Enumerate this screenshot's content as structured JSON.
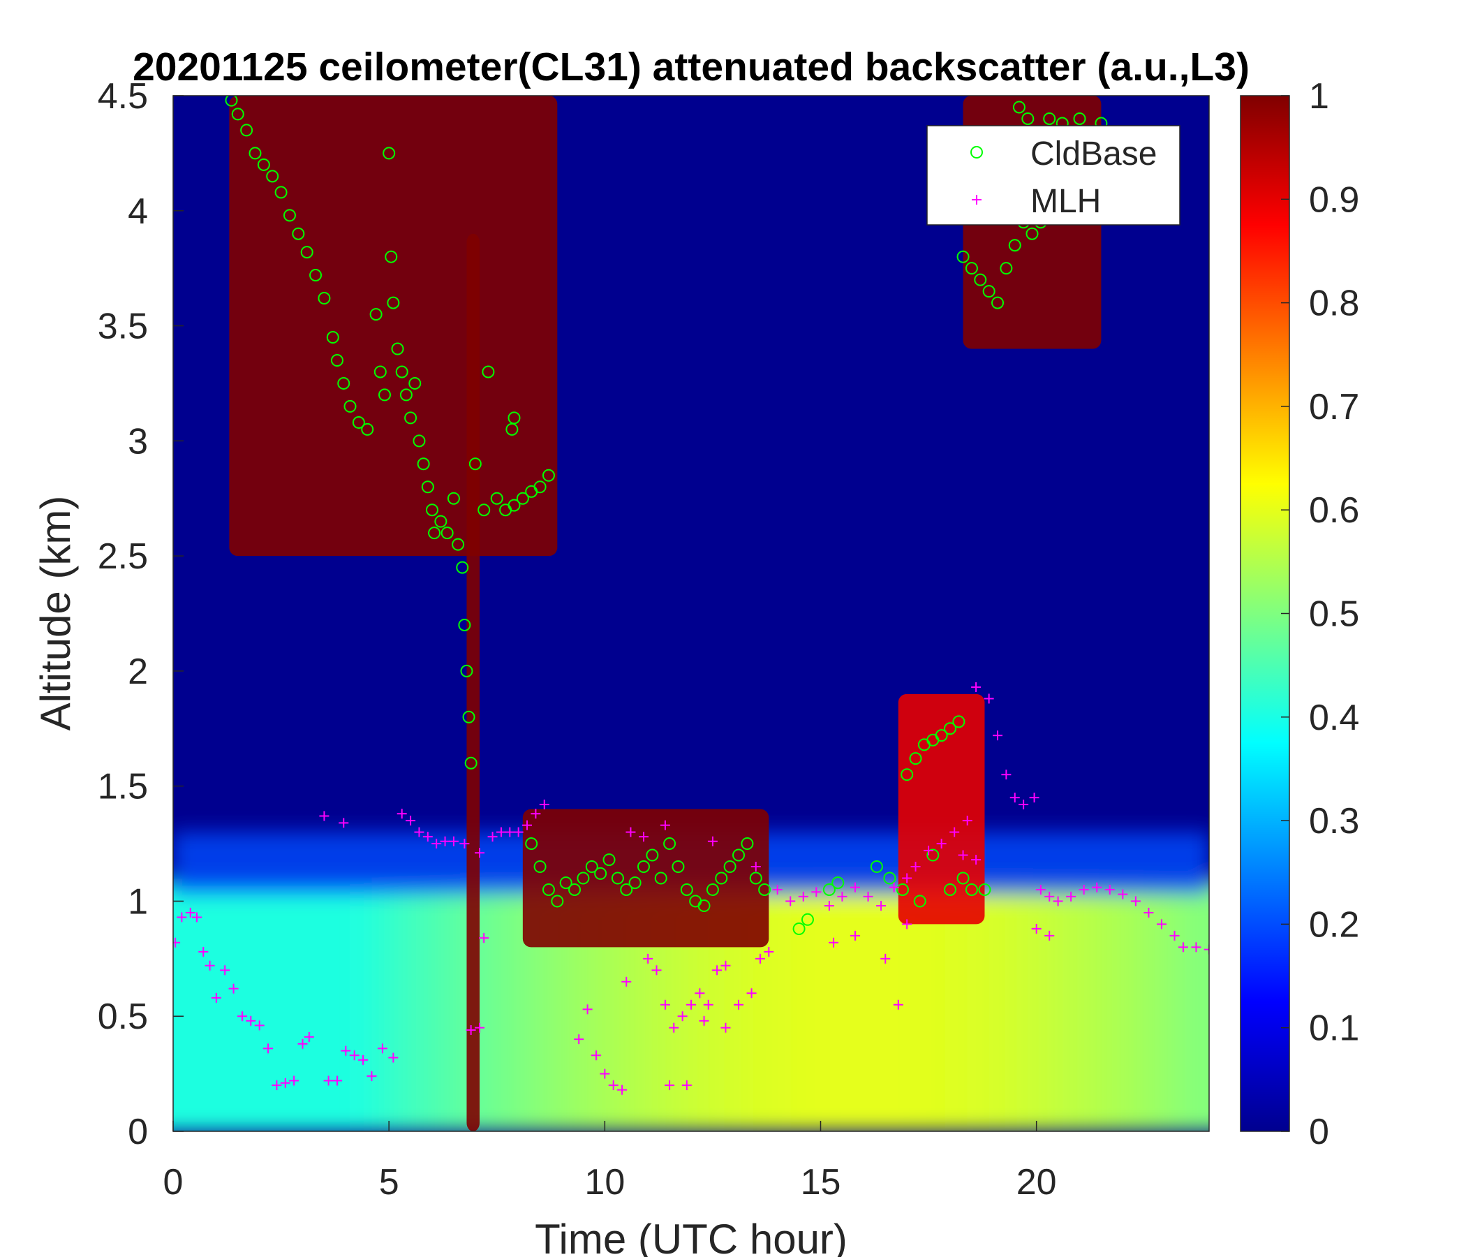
{
  "chart_data": {
    "type": "heatmap",
    "title": "20201125 ceilometer(CL31) attenuated backscatter (a.u.,L3)",
    "xlabel": "Time (UTC hour)",
    "ylabel": "Altitude (km)",
    "xlim": [
      0,
      24
    ],
    "ylim": [
      0,
      4.5
    ],
    "xticks": [
      0,
      5,
      10,
      15,
      20
    ],
    "yticks": [
      0,
      0.5,
      1,
      1.5,
      2,
      2.5,
      3,
      3.5,
      4,
      4.5
    ],
    "colorbar": {
      "colormap": "jet",
      "range": [
        0,
        1
      ],
      "ticks": [
        0,
        0.1,
        0.2,
        0.3,
        0.4,
        0.5,
        0.6,
        0.7,
        0.8,
        0.9,
        1
      ]
    },
    "legend": {
      "position": "top-right",
      "entries": [
        {
          "label": "CldBase",
          "marker": "circle",
          "color": "#00ff00"
        },
        {
          "label": "MLH",
          "marker": "plus",
          "color": "#ff00ff"
        }
      ]
    },
    "series": [
      {
        "name": "CldBase",
        "points": [
          [
            1.35,
            4.48
          ],
          [
            1.5,
            4.42
          ],
          [
            1.7,
            4.35
          ],
          [
            1.9,
            4.25
          ],
          [
            2.1,
            4.2
          ],
          [
            2.3,
            4.15
          ],
          [
            2.5,
            4.08
          ],
          [
            2.7,
            3.98
          ],
          [
            2.9,
            3.9
          ],
          [
            3.1,
            3.82
          ],
          [
            3.3,
            3.72
          ],
          [
            3.5,
            3.62
          ],
          [
            3.7,
            3.45
          ],
          [
            3.8,
            3.35
          ],
          [
            3.95,
            3.25
          ],
          [
            4.1,
            3.15
          ],
          [
            4.3,
            3.08
          ],
          [
            4.5,
            3.05
          ],
          [
            4.7,
            3.55
          ],
          [
            4.8,
            3.3
          ],
          [
            4.9,
            3.2
          ],
          [
            5.0,
            4.25
          ],
          [
            5.05,
            3.8
          ],
          [
            5.1,
            3.6
          ],
          [
            5.2,
            3.4
          ],
          [
            5.3,
            3.3
          ],
          [
            5.4,
            3.2
          ],
          [
            5.5,
            3.1
          ],
          [
            5.6,
            3.25
          ],
          [
            5.7,
            3.0
          ],
          [
            5.8,
            2.9
          ],
          [
            5.9,
            2.8
          ],
          [
            6.0,
            2.7
          ],
          [
            6.05,
            2.6
          ],
          [
            6.2,
            2.65
          ],
          [
            6.35,
            2.6
          ],
          [
            6.5,
            2.75
          ],
          [
            6.6,
            2.55
          ],
          [
            6.7,
            2.45
          ],
          [
            6.75,
            2.2
          ],
          [
            6.8,
            2.0
          ],
          [
            6.85,
            1.8
          ],
          [
            6.9,
            1.6
          ],
          [
            7.0,
            2.9
          ],
          [
            7.2,
            2.7
          ],
          [
            7.3,
            3.3
          ],
          [
            7.5,
            2.75
          ],
          [
            7.7,
            2.7
          ],
          [
            7.9,
            2.72
          ],
          [
            8.1,
            2.75
          ],
          [
            8.3,
            2.78
          ],
          [
            8.5,
            2.8
          ],
          [
            8.7,
            2.85
          ],
          [
            7.85,
            3.05
          ],
          [
            7.9,
            3.1
          ],
          [
            8.3,
            1.25
          ],
          [
            8.5,
            1.15
          ],
          [
            8.7,
            1.05
          ],
          [
            8.9,
            1.0
          ],
          [
            9.1,
            1.08
          ],
          [
            9.3,
            1.05
          ],
          [
            9.5,
            1.1
          ],
          [
            9.7,
            1.15
          ],
          [
            9.9,
            1.12
          ],
          [
            10.1,
            1.18
          ],
          [
            10.3,
            1.1
          ],
          [
            10.5,
            1.05
          ],
          [
            10.7,
            1.08
          ],
          [
            10.9,
            1.15
          ],
          [
            11.1,
            1.2
          ],
          [
            11.3,
            1.1
          ],
          [
            11.5,
            1.25
          ],
          [
            11.7,
            1.15
          ],
          [
            11.9,
            1.05
          ],
          [
            12.1,
            1.0
          ],
          [
            12.3,
            0.98
          ],
          [
            12.5,
            1.05
          ],
          [
            12.7,
            1.1
          ],
          [
            12.9,
            1.15
          ],
          [
            13.1,
            1.2
          ],
          [
            13.3,
            1.25
          ],
          [
            13.5,
            1.1
          ],
          [
            13.7,
            1.05
          ],
          [
            14.5,
            0.88
          ],
          [
            14.7,
            0.92
          ],
          [
            15.2,
            1.05
          ],
          [
            15.4,
            1.08
          ],
          [
            16.3,
            1.15
          ],
          [
            16.6,
            1.1
          ],
          [
            16.9,
            1.05
          ],
          [
            17.0,
            1.55
          ],
          [
            17.2,
            1.62
          ],
          [
            17.4,
            1.68
          ],
          [
            17.6,
            1.7
          ],
          [
            17.8,
            1.72
          ],
          [
            18.0,
            1.75
          ],
          [
            18.2,
            1.78
          ],
          [
            17.3,
            1.0
          ],
          [
            17.6,
            1.2
          ],
          [
            18.0,
            1.05
          ],
          [
            18.3,
            1.1
          ],
          [
            18.5,
            1.05
          ],
          [
            18.8,
            1.05
          ],
          [
            18.3,
            3.8
          ],
          [
            18.5,
            3.75
          ],
          [
            18.7,
            3.7
          ],
          [
            18.9,
            3.65
          ],
          [
            19.1,
            3.6
          ],
          [
            19.3,
            3.75
          ],
          [
            19.5,
            3.85
          ],
          [
            19.7,
            3.95
          ],
          [
            19.9,
            3.9
          ],
          [
            20.1,
            3.95
          ],
          [
            19.6,
            4.45
          ],
          [
            19.8,
            4.4
          ],
          [
            20.3,
            4.4
          ],
          [
            20.6,
            4.38
          ],
          [
            21.0,
            4.4
          ],
          [
            21.5,
            4.38
          ]
        ]
      },
      {
        "name": "MLH",
        "points": [
          [
            0.05,
            0.82
          ],
          [
            0.2,
            0.93
          ],
          [
            0.4,
            0.95
          ],
          [
            0.55,
            0.93
          ],
          [
            0.7,
            0.78
          ],
          [
            0.85,
            0.72
          ],
          [
            1.0,
            0.58
          ],
          [
            1.2,
            0.7
          ],
          [
            1.4,
            0.62
          ],
          [
            1.6,
            0.5
          ],
          [
            1.8,
            0.48
          ],
          [
            2.0,
            0.46
          ],
          [
            2.2,
            0.36
          ],
          [
            2.4,
            0.2
          ],
          [
            2.6,
            0.21
          ],
          [
            2.8,
            0.22
          ],
          [
            3.0,
            0.38
          ],
          [
            3.15,
            0.41
          ],
          [
            3.6,
            0.22
          ],
          [
            3.8,
            0.22
          ],
          [
            4.0,
            0.35
          ],
          [
            4.2,
            0.33
          ],
          [
            4.4,
            0.31
          ],
          [
            4.6,
            0.24
          ],
          [
            4.85,
            0.36
          ],
          [
            5.1,
            0.32
          ],
          [
            3.5,
            1.37
          ],
          [
            3.95,
            1.34
          ],
          [
            5.3,
            1.38
          ],
          [
            5.5,
            1.35
          ],
          [
            5.7,
            1.3
          ],
          [
            5.9,
            1.28
          ],
          [
            6.1,
            1.25
          ],
          [
            6.3,
            1.26
          ],
          [
            6.5,
            1.26
          ],
          [
            6.75,
            1.25
          ],
          [
            7.1,
            1.21
          ],
          [
            7.4,
            1.28
          ],
          [
            7.6,
            1.3
          ],
          [
            7.8,
            1.3
          ],
          [
            8.0,
            1.3
          ],
          [
            8.2,
            1.33
          ],
          [
            8.4,
            1.38
          ],
          [
            8.6,
            1.42
          ],
          [
            6.9,
            0.44
          ],
          [
            7.1,
            0.45
          ],
          [
            7.2,
            0.84
          ],
          [
            9.4,
            0.4
          ],
          [
            9.6,
            0.53
          ],
          [
            9.8,
            0.33
          ],
          [
            10.0,
            0.25
          ],
          [
            10.2,
            0.2
          ],
          [
            10.4,
            0.18
          ],
          [
            10.5,
            0.65
          ],
          [
            11.0,
            0.75
          ],
          [
            11.2,
            0.7
          ],
          [
            11.4,
            0.55
          ],
          [
            11.6,
            0.45
          ],
          [
            11.8,
            0.5
          ],
          [
            12.0,
            0.55
          ],
          [
            12.2,
            0.6
          ],
          [
            12.4,
            0.55
          ],
          [
            12.6,
            0.7
          ],
          [
            12.8,
            0.72
          ],
          [
            13.1,
            0.55
          ],
          [
            13.4,
            0.6
          ],
          [
            13.6,
            0.75
          ],
          [
            13.8,
            0.78
          ],
          [
            11.5,
            0.2
          ],
          [
            11.9,
            0.2
          ],
          [
            12.3,
            0.48
          ],
          [
            12.8,
            0.45
          ],
          [
            10.6,
            1.3
          ],
          [
            10.9,
            1.28
          ],
          [
            11.4,
            1.33
          ],
          [
            12.5,
            1.26
          ],
          [
            13.5,
            1.15
          ],
          [
            14.0,
            1.05
          ],
          [
            14.3,
            1.0
          ],
          [
            14.6,
            1.02
          ],
          [
            14.9,
            1.04
          ],
          [
            15.2,
            0.98
          ],
          [
            15.5,
            1.02
          ],
          [
            15.8,
            1.06
          ],
          [
            16.1,
            1.02
          ],
          [
            16.4,
            0.98
          ],
          [
            16.7,
            1.06
          ],
          [
            17.0,
            1.1
          ],
          [
            17.2,
            1.15
          ],
          [
            17.5,
            1.22
          ],
          [
            17.8,
            1.25
          ],
          [
            18.1,
            1.3
          ],
          [
            18.4,
            1.35
          ],
          [
            18.6,
            1.93
          ],
          [
            18.9,
            1.88
          ],
          [
            19.1,
            1.72
          ],
          [
            19.3,
            1.55
          ],
          [
            19.5,
            1.45
          ],
          [
            19.7,
            1.42
          ],
          [
            19.95,
            1.45
          ],
          [
            18.3,
            1.2
          ],
          [
            18.6,
            1.18
          ],
          [
            15.3,
            0.82
          ],
          [
            15.8,
            0.85
          ],
          [
            16.5,
            0.75
          ],
          [
            16.8,
            0.55
          ],
          [
            17.0,
            0.9
          ],
          [
            20.1,
            1.05
          ],
          [
            20.3,
            1.02
          ],
          [
            20.5,
            1.0
          ],
          [
            20.8,
            1.02
          ],
          [
            21.1,
            1.05
          ],
          [
            21.4,
            1.06
          ],
          [
            21.7,
            1.05
          ],
          [
            22.0,
            1.03
          ],
          [
            22.3,
            1.0
          ],
          [
            22.6,
            0.95
          ],
          [
            22.9,
            0.9
          ],
          [
            23.2,
            0.85
          ],
          [
            23.4,
            0.8
          ],
          [
            23.7,
            0.8
          ],
          [
            24.0,
            0.79
          ],
          [
            20.0,
            0.88
          ],
          [
            20.3,
            0.85
          ]
        ]
      }
    ],
    "field_features": [
      {
        "kind": "layer",
        "x": [
          0,
          24
        ],
        "y": [
          0,
          1.3
        ],
        "value_range": [
          0.3,
          0.6
        ]
      },
      {
        "kind": "cloud",
        "x": [
          1.3,
          8.9
        ],
        "y": [
          2.5,
          4.5
        ],
        "value": 1.0
      },
      {
        "kind": "precip_column",
        "x": [
          6.8,
          7.1
        ],
        "y": [
          0,
          3.9
        ],
        "value": 1.0
      },
      {
        "kind": "cloud",
        "x": [
          8.1,
          13.8
        ],
        "y": [
          0.8,
          1.4
        ],
        "value": 1.0
      },
      {
        "kind": "cloud",
        "x": [
          16.8,
          18.8
        ],
        "y": [
          0.9,
          1.9
        ],
        "value": 0.9
      },
      {
        "kind": "cloud",
        "x": [
          18.3,
          21.5
        ],
        "y": [
          3.4,
          4.5
        ],
        "value": 1.0
      }
    ]
  }
}
